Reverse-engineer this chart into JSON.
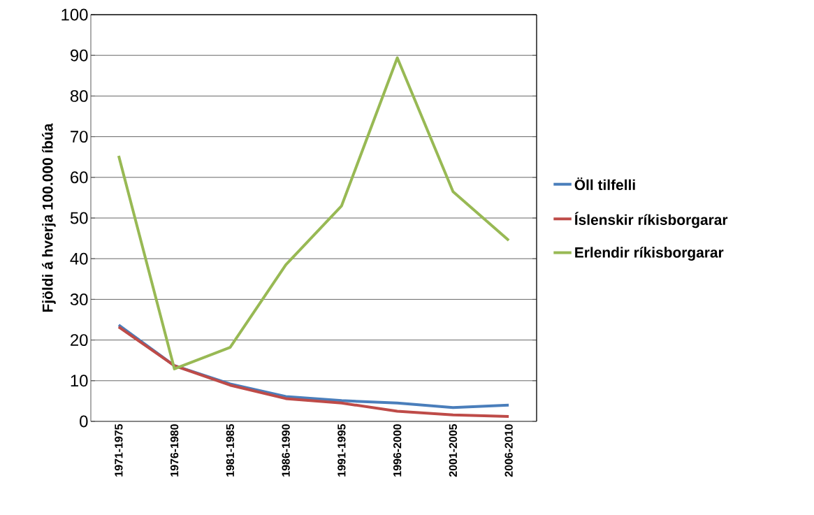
{
  "chart_data": {
    "type": "line",
    "ylabel": "Fjöldi á hverja 100.000 íbúa",
    "categories": [
      "1971-1975",
      "1976-1980",
      "1981-1985",
      "1986-1990",
      "1991-1995",
      "1996-2000",
      "2001-2005",
      "2006-2010"
    ],
    "series": [
      {
        "name": "Öll tilfelli",
        "color": "#4a7ebb",
        "values": [
          23.7,
          13.7,
          9.2,
          6.1,
          5.1,
          4.5,
          3.4,
          4.0
        ]
      },
      {
        "name": "Íslenskir ríkisborgarar",
        "color": "#be4b48",
        "values": [
          23.2,
          13.7,
          8.9,
          5.6,
          4.5,
          2.5,
          1.6,
          1.2
        ]
      },
      {
        "name": "Erlendir ríkisborgarar",
        "color": "#98b954",
        "values": [
          65.3,
          12.9,
          18.2,
          38.5,
          53.0,
          89.4,
          56.5,
          44.5
        ]
      }
    ],
    "ylim": [
      0,
      100
    ],
    "yticks": [
      0,
      10,
      20,
      30,
      40,
      50,
      60,
      70,
      80,
      90,
      100
    ],
    "grid": "y",
    "legend": "right",
    "marker": "none",
    "line_style": "solid"
  }
}
